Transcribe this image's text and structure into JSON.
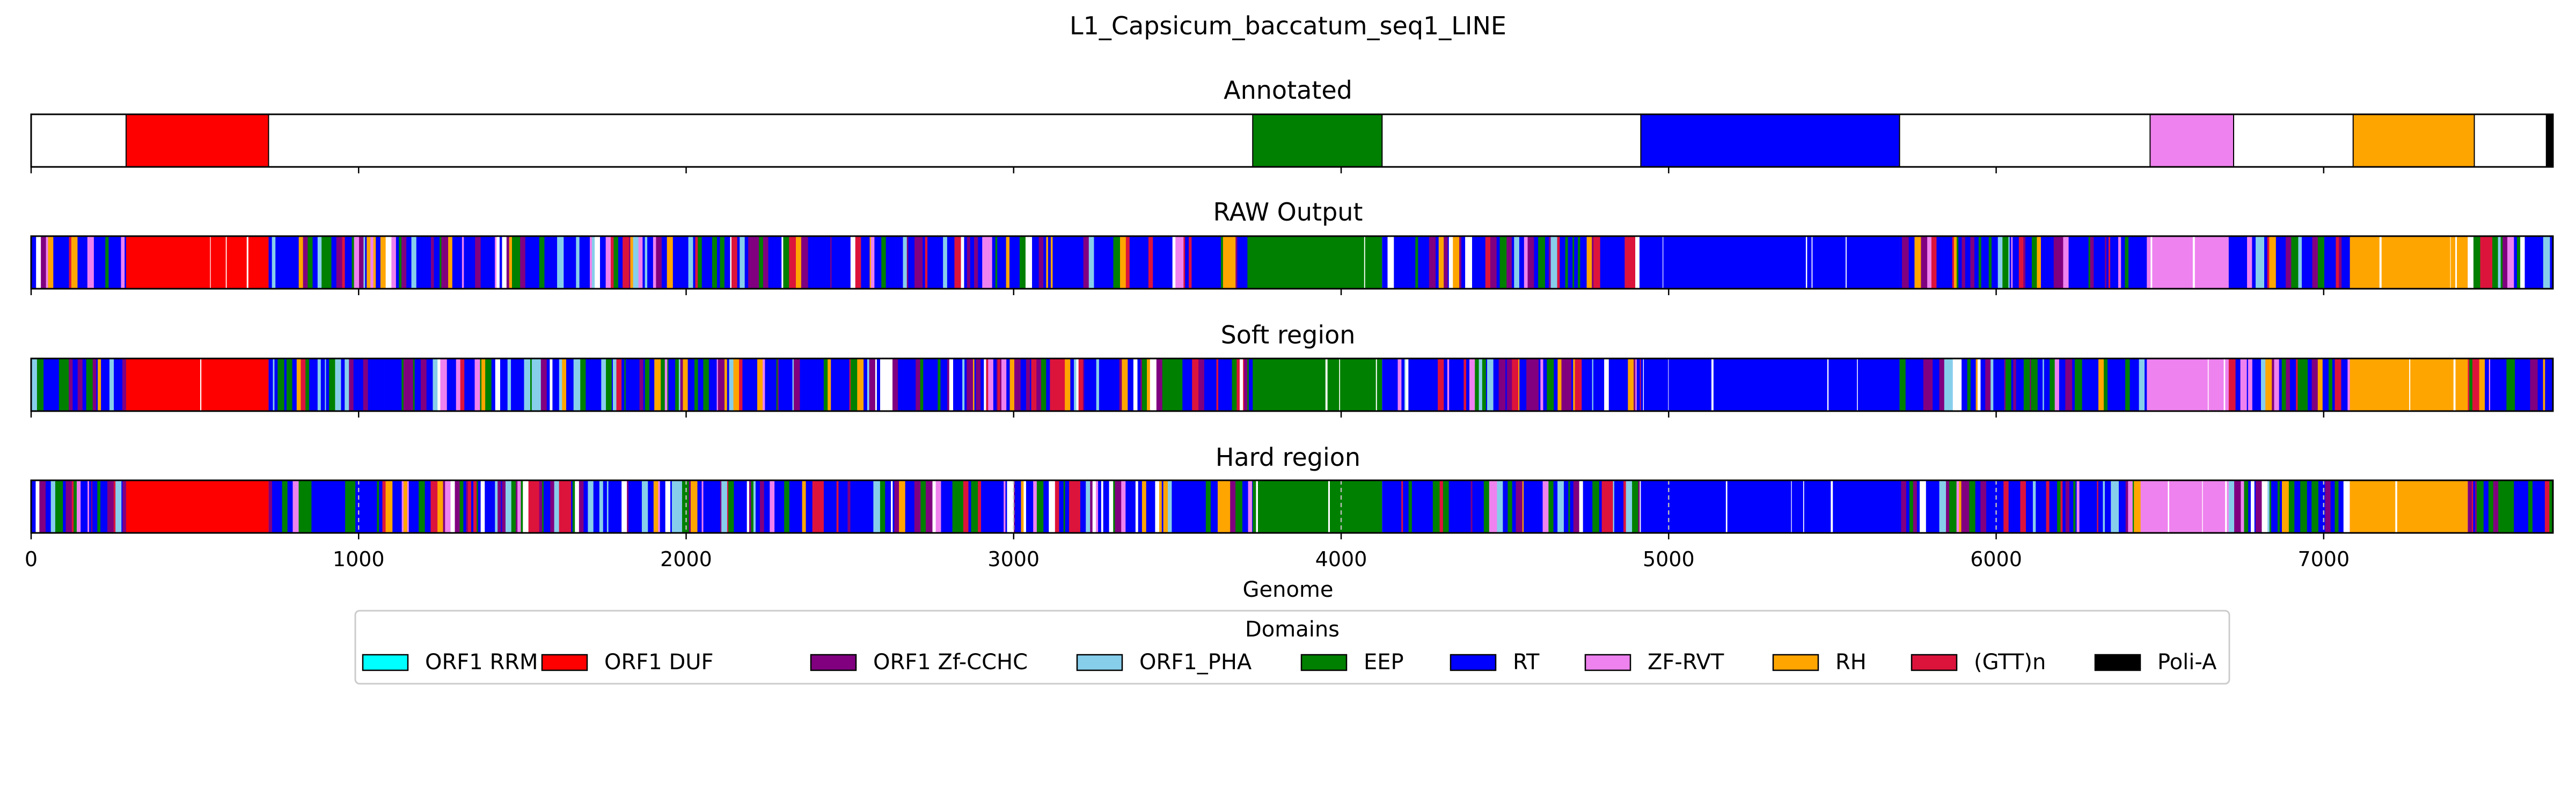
{
  "chart_data": {
    "type": "genome-track",
    "title": "L1_Capsicum_baccatum_seq1_LINE",
    "xlabel": "Genome",
    "xlim": [
      0,
      7700
    ],
    "xticks": [
      0,
      1000,
      2000,
      3000,
      4000,
      5000,
      6000,
      7000
    ],
    "grid": "off",
    "legend": {
      "title": "Domains",
      "placement": "bottom-center",
      "entries": [
        {
          "label": "ORF1 RRM",
          "color": "#00ffff"
        },
        {
          "label": "ORF1 DUF",
          "color": "#ff0000"
        },
        {
          "label": "ORF1 Zf-CCHC",
          "color": "#800080"
        },
        {
          "label": "ORF1_PHA",
          "color": "#87ceeb"
        },
        {
          "label": "EEP",
          "color": "#008000"
        },
        {
          "label": "RT",
          "color": "#0000ff"
        },
        {
          "label": "ZF-RVT",
          "color": "#ee82ee"
        },
        {
          "label": "RH",
          "color": "#ffa500"
        },
        {
          "label": "(GTT)n",
          "color": "#dc143c"
        },
        {
          "label": "Poli-A",
          "color": "#000000"
        }
      ]
    },
    "panels": [
      {
        "title": "Annotated",
        "segments": [
          {
            "start": 290,
            "end": 725,
            "domain": "ORF1 DUF"
          },
          {
            "start": 3730,
            "end": 4125,
            "domain": "EEP"
          },
          {
            "start": 4915,
            "end": 5705,
            "domain": "RT"
          },
          {
            "start": 6470,
            "end": 6725,
            "domain": "ZF-RVT"
          },
          {
            "start": 7090,
            "end": 7460,
            "domain": "RH"
          },
          {
            "start": 7680,
            "end": 7700,
            "domain": "Poli-A"
          }
        ]
      },
      {
        "title": "RAW Output",
        "segments": [
          {
            "start": 0,
            "end": 290,
            "domain": "mixed"
          },
          {
            "start": 290,
            "end": 725,
            "domain": "ORF1 DUF"
          },
          {
            "start": 725,
            "end": 3730,
            "domain": "mixed"
          },
          {
            "start": 3730,
            "end": 4125,
            "domain": "EEP"
          },
          {
            "start": 4125,
            "end": 4915,
            "domain": "mixed"
          },
          {
            "start": 4915,
            "end": 5705,
            "domain": "RT"
          },
          {
            "start": 5705,
            "end": 6460,
            "domain": "mixed"
          },
          {
            "start": 6460,
            "end": 6710,
            "domain": "ZF-RVT"
          },
          {
            "start": 6710,
            "end": 7080,
            "domain": "mixed"
          },
          {
            "start": 7080,
            "end": 7440,
            "domain": "RH"
          },
          {
            "start": 7440,
            "end": 7700,
            "domain": "mixed"
          }
        ]
      },
      {
        "title": "Soft region",
        "segments": [
          {
            "start": 0,
            "end": 290,
            "domain": "mixed"
          },
          {
            "start": 290,
            "end": 725,
            "domain": "ORF1 DUF"
          },
          {
            "start": 725,
            "end": 3730,
            "domain": "mixed"
          },
          {
            "start": 3730,
            "end": 4125,
            "domain": "EEP"
          },
          {
            "start": 4125,
            "end": 4915,
            "domain": "mixed"
          },
          {
            "start": 4915,
            "end": 5705,
            "domain": "RT"
          },
          {
            "start": 5705,
            "end": 6460,
            "domain": "mixed"
          },
          {
            "start": 6460,
            "end": 6710,
            "domain": "ZF-RVT"
          },
          {
            "start": 6710,
            "end": 7080,
            "domain": "mixed"
          },
          {
            "start": 7080,
            "end": 7440,
            "domain": "RH"
          },
          {
            "start": 7440,
            "end": 7700,
            "domain": "mixed"
          }
        ]
      },
      {
        "title": "Hard region",
        "segments": [
          {
            "start": 0,
            "end": 290,
            "domain": "mixed"
          },
          {
            "start": 290,
            "end": 725,
            "domain": "ORF1 DUF"
          },
          {
            "start": 725,
            "end": 3730,
            "domain": "mixed"
          },
          {
            "start": 3730,
            "end": 4125,
            "domain": "EEP"
          },
          {
            "start": 4125,
            "end": 4915,
            "domain": "mixed"
          },
          {
            "start": 4915,
            "end": 5705,
            "domain": "RT"
          },
          {
            "start": 5705,
            "end": 6460,
            "domain": "mixed"
          },
          {
            "start": 6460,
            "end": 6710,
            "domain": "ZF-RVT"
          },
          {
            "start": 6710,
            "end": 7080,
            "domain": "mixed"
          },
          {
            "start": 7080,
            "end": 7440,
            "domain": "RH"
          },
          {
            "start": 7440,
            "end": 7700,
            "domain": "mixed"
          }
        ]
      }
    ]
  }
}
